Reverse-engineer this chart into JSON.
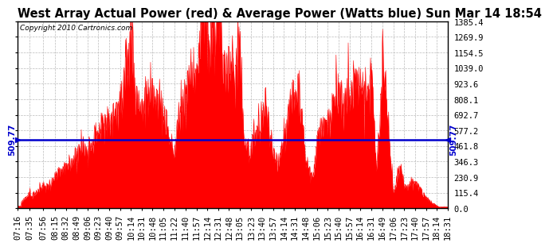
{
  "title": "West Array Actual Power (red) & Average Power (Watts blue) Sun Mar 14 18:54",
  "copyright": "Copyright 2010 Cartronics.com",
  "avg_power": 509.77,
  "y_max": 1385.4,
  "y_min": 0.0,
  "yticks": [
    0.0,
    115.4,
    230.9,
    346.3,
    461.8,
    577.2,
    692.7,
    808.1,
    923.6,
    1039.0,
    1154.5,
    1269.9,
    1385.4
  ],
  "background_color": "#ffffff",
  "plot_bg_color": "#ffffff",
  "grid_color": "#bbbbbb",
  "bar_color": "#ff0000",
  "avg_line_color": "#0000cd",
  "title_fontsize": 10.5,
  "tick_fontsize": 7.5,
  "x_labels": [
    "07:16",
    "07:35",
    "07:56",
    "08:15",
    "08:32",
    "08:49",
    "09:06",
    "09:23",
    "09:40",
    "09:57",
    "10:14",
    "10:31",
    "10:48",
    "11:05",
    "11:22",
    "11:40",
    "11:57",
    "12:14",
    "12:31",
    "12:48",
    "13:05",
    "13:23",
    "13:40",
    "13:57",
    "14:14",
    "14:31",
    "14:48",
    "15:06",
    "15:23",
    "15:40",
    "15:57",
    "16:14",
    "16:31",
    "16:49",
    "17:06",
    "17:23",
    "17:40",
    "17:57",
    "18:14",
    "18:31"
  ]
}
